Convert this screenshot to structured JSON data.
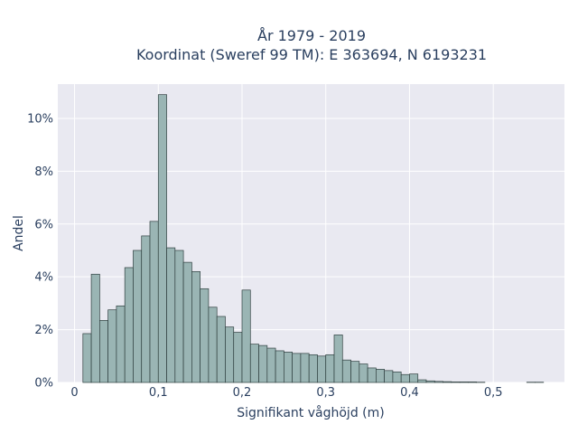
{
  "chart_data": {
    "type": "bar",
    "title_line1": "År 1979 - 2019",
    "title_line2": "Koordinat (Sweref 99 TM): E 363694, N 6193231",
    "xlabel": "Signifikant våghöjd (m)",
    "ylabel": "Andel",
    "xlim": [
      -0.02,
      0.585
    ],
    "ylim": [
      0,
      11.3
    ],
    "xticks": [
      {
        "value": 0.0,
        "label": "0"
      },
      {
        "value": 0.1,
        "label": "0,1"
      },
      {
        "value": 0.2,
        "label": "0,2"
      },
      {
        "value": 0.3,
        "label": "0,3"
      },
      {
        "value": 0.4,
        "label": "0,4"
      },
      {
        "value": 0.5,
        "label": "0,5"
      }
    ],
    "yticks": [
      {
        "value": 0,
        "label": "0%"
      },
      {
        "value": 2,
        "label": "2%"
      },
      {
        "value": 4,
        "label": "4%"
      },
      {
        "value": 6,
        "label": "6%"
      },
      {
        "value": 8,
        "label": "8%"
      },
      {
        "value": 10,
        "label": "10%"
      }
    ],
    "bin_width": 0.01,
    "bins_start": [
      0.01,
      0.02,
      0.03,
      0.04,
      0.05,
      0.06,
      0.07,
      0.08,
      0.09,
      0.1,
      0.11,
      0.12,
      0.13,
      0.14,
      0.15,
      0.16,
      0.17,
      0.18,
      0.19,
      0.2,
      0.21,
      0.22,
      0.23,
      0.24,
      0.25,
      0.26,
      0.27,
      0.28,
      0.29,
      0.3,
      0.31,
      0.32,
      0.33,
      0.34,
      0.35,
      0.36,
      0.37,
      0.38,
      0.39,
      0.4,
      0.41,
      0.42,
      0.43,
      0.44,
      0.45,
      0.46,
      0.47,
      0.48,
      0.49,
      0.5,
      0.51,
      0.52,
      0.53,
      0.54,
      0.55
    ],
    "values": [
      1.85,
      4.1,
      2.35,
      2.75,
      2.9,
      4.35,
      5.0,
      5.55,
      6.1,
      10.9,
      5.1,
      5.0,
      4.55,
      4.2,
      3.55,
      2.85,
      2.5,
      2.1,
      1.9,
      3.5,
      1.45,
      1.4,
      1.3,
      1.2,
      1.15,
      1.1,
      1.1,
      1.05,
      1.0,
      1.05,
      1.8,
      0.85,
      0.8,
      0.7,
      0.55,
      0.5,
      0.45,
      0.4,
      0.3,
      0.32,
      0.1,
      0.06,
      0.04,
      0.03,
      0.02,
      0.02,
      0.02,
      0.01,
      0.0,
      0.0,
      0.0,
      0.0,
      0.0,
      0.01,
      0.01
    ],
    "bar_color": "#9ab5b4",
    "bar_edge_color": "#2f3f3f",
    "plot_bg": "#e9e9f1",
    "grid": true
  }
}
